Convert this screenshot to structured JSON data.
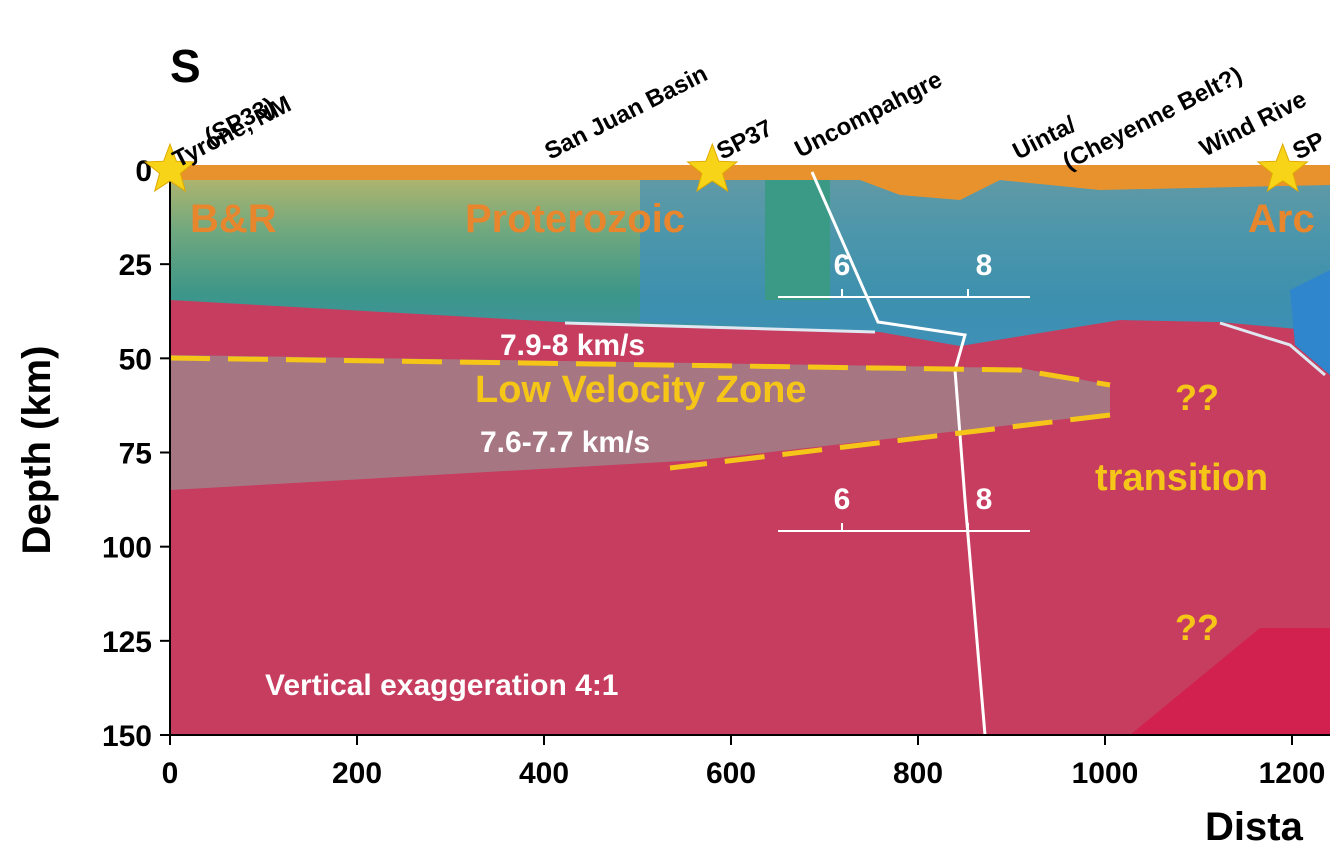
{
  "chart_data": {
    "type": "cross-section",
    "title": "S",
    "x_label": "Dista",
    "y_label": "Depth (km)",
    "xlim": [
      0,
      1240
    ],
    "ylim": [
      0,
      150
    ],
    "xticks": [
      0,
      200,
      400,
      600,
      800,
      1000,
      1200
    ],
    "yticks": [
      0,
      25,
      50,
      75,
      100,
      125,
      150
    ],
    "stations_x": [
      0,
      580,
      1190
    ],
    "site_labels": [
      "Tyrone, NM",
      "(SP33)",
      "San Juan Basin",
      "SP37",
      "Uncompahgre",
      "Uinta/",
      "(Cheyenne Belt?)",
      "Wind Rive",
      "SP"
    ],
    "region_labels": [
      "B&R",
      "Proterozoic",
      "Arc"
    ],
    "annotations": [
      "7.9-8 km/s",
      "Low Velocity Zone",
      "7.6-7.7 km/s",
      "??",
      "transition",
      "??",
      "Vertical exaggeration 4:1"
    ],
    "velocity_scales": [
      {
        "ticks": [
          6,
          8
        ]
      },
      {
        "ticks": [
          6,
          8
        ]
      }
    ]
  }
}
